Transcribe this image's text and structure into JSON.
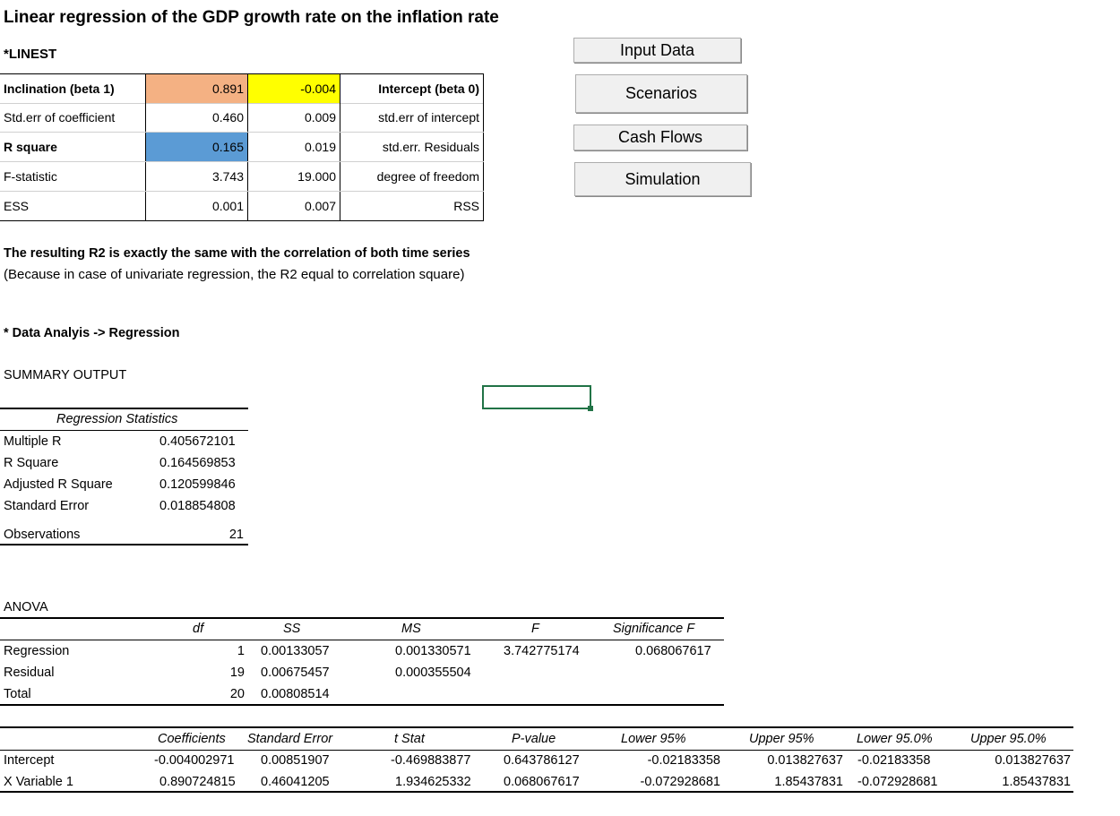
{
  "title": "Linear regression of the GDP growth rate on the inflation rate",
  "linest_label": "*LINEST",
  "linest": {
    "rows": [
      {
        "label": "Inclination (beta 1)",
        "v1": "0.891",
        "v2": "-0.004",
        "desc": "Intercept (beta 0)"
      },
      {
        "label": "Std.err of coefficient",
        "v1": "0.460",
        "v2": "0.009",
        "desc": "std.err of intercept"
      },
      {
        "label": "R square",
        "v1": "0.165",
        "v2": "0.019",
        "desc": "std.err. Residuals"
      },
      {
        "label": "F-statistic",
        "v1": "3.743",
        "v2": "19.000",
        "desc": "degree of freedom"
      },
      {
        "label": "ESS",
        "v1": "0.001",
        "v2": "0.007",
        "desc": "RSS"
      }
    ]
  },
  "buttons": {
    "input_data": "Input Data",
    "scenarios": "Scenarios",
    "cash_flows": "Cash Flows",
    "simulation": "Simulation"
  },
  "note": {
    "line1": "The resulting R2 is exactly the same with the correlation of both time series",
    "line2": "(Because in case of univariate regression, the R2 equal to correlation square)"
  },
  "data_analysis_label": "* Data Analyis -> Regression",
  "summary_output": "SUMMARY OUTPUT",
  "regression_statistics": {
    "header": "Regression Statistics",
    "rows": [
      {
        "label": "Multiple R",
        "value": "0.405672101"
      },
      {
        "label": "R Square",
        "value": "0.164569853"
      },
      {
        "label": "Adjusted R Square",
        "value": "0.120599846"
      },
      {
        "label": "Standard Error",
        "value": "0.018854808"
      },
      {
        "label": "Observations",
        "value": "21"
      }
    ]
  },
  "anova": {
    "label": "ANOVA",
    "headers": {
      "df": "df",
      "ss": "SS",
      "ms": "MS",
      "f": "F",
      "sig": "Significance F"
    },
    "rows": [
      {
        "label": "Regression",
        "df": "1",
        "ss": "0.00133057",
        "ms": "0.001330571",
        "f": "3.742775174",
        "sig": "0.068067617"
      },
      {
        "label": "Residual",
        "df": "19",
        "ss": "0.00675457",
        "ms": "0.000355504",
        "f": "",
        "sig": ""
      },
      {
        "label": "Total",
        "df": "20",
        "ss": "0.00808514",
        "ms": "",
        "f": "",
        "sig": ""
      }
    ]
  },
  "coefficients": {
    "headers": {
      "coef": "Coefficients",
      "se": "Standard Error",
      "t": "t Stat",
      "p": "P-value",
      "l95": "Lower 95%",
      "u95": "Upper 95%",
      "l950": "Lower 95.0%",
      "u950": "Upper 95.0%"
    },
    "rows": [
      {
        "label": "Intercept",
        "coef": "-0.004002971",
        "se": "0.00851907",
        "t": "-0.469883877",
        "p": "0.643786127",
        "l95": "-0.02183358",
        "u95": "0.013827637",
        "l950": "-0.02183358",
        "u950": "0.013827637"
      },
      {
        "label": "X Variable 1",
        "coef": "0.890724815",
        "se": "0.46041205",
        "t": "1.934625332",
        "p": "0.068067617",
        "l95": "-0.072928681",
        "u95": "1.85437831",
        "l950": "-0.072928681",
        "u950": "1.85437831"
      }
    ]
  },
  "colors": {
    "orange": "#f4b183",
    "yellow": "#ffff00",
    "blue": "#5b9bd5",
    "selection": "#217346"
  }
}
